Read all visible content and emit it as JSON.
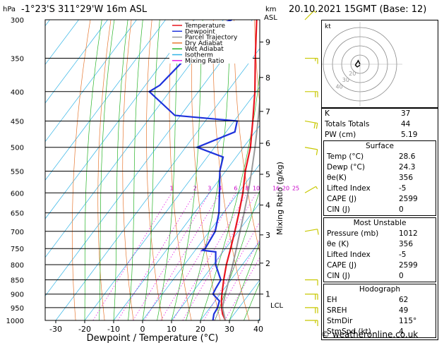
{
  "header": {
    "location": "-1°23'S  311°29'W  16m  ASL",
    "datetime": "20.10.2021  15GMT  (Base: 12)",
    "hpa_label": "hPa",
    "km_label": "km",
    "asl_label": "ASL",
    "x_axis_label": "Dewpoint / Temperature (°C)",
    "mixing_ratio_label": "Mixing Ratio (g/kg)",
    "lcl_label": "LCL",
    "credit": "© weatheronline.co.uk"
  },
  "legend": [
    {
      "label": "Temperature",
      "color": "#e8141e"
    },
    {
      "label": "Dewpoint",
      "color": "#1e32dc"
    },
    {
      "label": "Parcel Trajectory",
      "color": "#9a9a9a"
    },
    {
      "label": "Dry Adiabat",
      "color": "#e67832"
    },
    {
      "label": "Wet Adiabat",
      "color": "#28b428"
    },
    {
      "label": "Isotherm",
      "color": "#32b4e6"
    },
    {
      "label": "Mixing Ratio",
      "color": "#e61ee6"
    }
  ],
  "chart_data": {
    "type": "line",
    "x_ticks": [
      -30,
      -20,
      -10,
      0,
      10,
      20,
      30,
      40
    ],
    "pressure_levels": [
      300,
      350,
      400,
      450,
      500,
      550,
      600,
      650,
      700,
      750,
      800,
      850,
      900,
      950,
      1000
    ],
    "km_ticks": [
      {
        "label": "1",
        "p": 900
      },
      {
        "label": "2",
        "p": 795
      },
      {
        "label": "3",
        "p": 710
      },
      {
        "label": "4",
        "p": 630
      },
      {
        "label": "5",
        "p": 557
      },
      {
        "label": "6",
        "p": 492
      },
      {
        "label": "7",
        "p": 433
      },
      {
        "label": "8",
        "p": 378
      },
      {
        "label": "9",
        "p": 328
      }
    ],
    "mixing_ratio_labels": [
      "1",
      "2",
      "3",
      "4",
      "6",
      "8",
      "10",
      "16",
      "20",
      "25"
    ],
    "mixing_ratio_values": [
      1,
      2,
      3,
      4,
      6,
      8,
      10,
      16,
      20,
      25
    ],
    "series": [
      {
        "name": "Temperature",
        "color": "#e8141e",
        "points": [
          [
            1000,
            28.6
          ],
          [
            975,
            26.0
          ],
          [
            950,
            24.0
          ],
          [
            925,
            22.2
          ],
          [
            900,
            20.6
          ],
          [
            850,
            17.5
          ],
          [
            800,
            14.5
          ],
          [
            750,
            11.8
          ],
          [
            700,
            8.8
          ],
          [
            650,
            5.4
          ],
          [
            600,
            1.6
          ],
          [
            550,
            -3.2
          ],
          [
            500,
            -7.6
          ],
          [
            450,
            -13.6
          ],
          [
            400,
            -20.5
          ],
          [
            350,
            -29.0
          ],
          [
            300,
            -38.5
          ]
        ]
      },
      {
        "name": "Dewpoint",
        "color": "#1e32dc",
        "points": [
          [
            1000,
            24.3
          ],
          [
            975,
            23.0
          ],
          [
            950,
            22.6
          ],
          [
            925,
            21.5
          ],
          [
            900,
            17.5
          ],
          [
            880,
            17.0
          ],
          [
            850,
            16.5
          ],
          [
            800,
            10.8
          ],
          [
            760,
            7.5
          ],
          [
            755,
            2.5
          ],
          [
            750,
            3.0
          ],
          [
            700,
            2.0
          ],
          [
            650,
            -1.5
          ],
          [
            600,
            -6.5
          ],
          [
            550,
            -12.0
          ],
          [
            520,
            -14.5
          ],
          [
            500,
            -26.0
          ],
          [
            470,
            -17.0
          ],
          [
            450,
            -19.0
          ],
          [
            440,
            -42.0
          ],
          [
            400,
            -57.0
          ],
          [
            390,
            -55.0
          ],
          [
            350,
            -53.0
          ],
          [
            310,
            -53.0
          ],
          [
            300,
            -47.0
          ]
        ]
      },
      {
        "name": "Parcel Trajectory",
        "color": "#9a9a9a",
        "points": [
          [
            1000,
            28.6
          ],
          [
            950,
            24.3
          ],
          [
            925,
            23.0
          ],
          [
            900,
            21.8
          ],
          [
            850,
            19.3
          ],
          [
            800,
            16.7
          ],
          [
            750,
            13.8
          ],
          [
            700,
            10.6
          ],
          [
            650,
            7.2
          ],
          [
            600,
            3.4
          ],
          [
            550,
            -1.0
          ],
          [
            500,
            -6.0
          ],
          [
            450,
            -11.8
          ],
          [
            400,
            -18.5
          ],
          [
            350,
            -26.5
          ]
        ]
      }
    ],
    "dry_adiabat_theta_k": [
      250,
      260,
      270,
      280,
      290,
      300,
      310,
      320,
      330,
      340,
      350,
      360,
      370,
      380,
      390,
      400,
      410,
      420
    ],
    "wet_adiabat_start_c": [
      -20,
      -15,
      -10,
      -5,
      0,
      5,
      10,
      15,
      20,
      25,
      30,
      35
    ],
    "isotherms_c": [
      -110,
      -100,
      -90,
      -80,
      -70,
      -60,
      -50,
      -40,
      -30,
      -20,
      -10,
      0,
      10,
      20,
      30,
      40
    ],
    "xlim": [
      -35,
      40
    ],
    "ylim_hpa": [
      300,
      1000
    ]
  },
  "hodograph": {
    "label": "kt",
    "ring_labels": [
      "40",
      "30",
      "20"
    ],
    "points_kt": [
      [
        0,
        0
      ],
      [
        -1,
        2
      ],
      [
        -2,
        4
      ],
      [
        -3,
        2
      ],
      [
        -4,
        1
      ],
      [
        -5,
        -1
      ],
      [
        -3,
        -3
      ],
      [
        0,
        -1
      ]
    ]
  },
  "indices": {
    "top": [
      {
        "label": "K",
        "value": "37"
      },
      {
        "label": "Totals Totals",
        "value": "44"
      },
      {
        "label": "PW (cm)",
        "value": "5.19"
      }
    ],
    "surface_title": "Surface",
    "surface": [
      {
        "label": "Temp (°C)",
        "value": "28.6"
      },
      {
        "label": "Dewp (°C)",
        "value": "24.3"
      },
      {
        "label": "θe(K)",
        "value": "356"
      },
      {
        "label": "Lifted Index",
        "value": "-5"
      },
      {
        "label": "CAPE (J)",
        "value": "2599"
      },
      {
        "label": "CIN (J)",
        "value": "0"
      }
    ],
    "mu_title": "Most Unstable",
    "mu": [
      {
        "label": "Pressure (mb)",
        "value": "1012"
      },
      {
        "label": "θe (K)",
        "value": "356"
      },
      {
        "label": "Lifted Index",
        "value": "-5"
      },
      {
        "label": "CAPE (J)",
        "value": "2599"
      },
      {
        "label": "CIN (J)",
        "value": "0"
      }
    ],
    "hodo_title": "Hodograph",
    "hodo": [
      {
        "label": "EH",
        "value": "62"
      },
      {
        "label": "SREH",
        "value": "49"
      },
      {
        "label": "StmDir",
        "value": "115°"
      },
      {
        "label": "StmSpd (kt)",
        "value": "4"
      }
    ]
  },
  "wind_barbs": [
    {
      "p": 300,
      "dir": 45,
      "spd": 5
    },
    {
      "p": 350,
      "dir": 90,
      "spd": 15
    },
    {
      "p": 400,
      "dir": 90,
      "spd": 20
    },
    {
      "p": 450,
      "dir": 100,
      "spd": 20
    },
    {
      "p": 500,
      "dir": 100,
      "spd": 10
    },
    {
      "p": 600,
      "dir": 60,
      "spd": 5
    },
    {
      "p": 700,
      "dir": 80,
      "spd": 10
    },
    {
      "p": 850,
      "dir": 90,
      "spd": 10
    },
    {
      "p": 900,
      "dir": 90,
      "spd": 20
    },
    {
      "p": 950,
      "dir": 90,
      "spd": 20
    },
    {
      "p": 1000,
      "dir": 90,
      "spd": 15
    }
  ]
}
